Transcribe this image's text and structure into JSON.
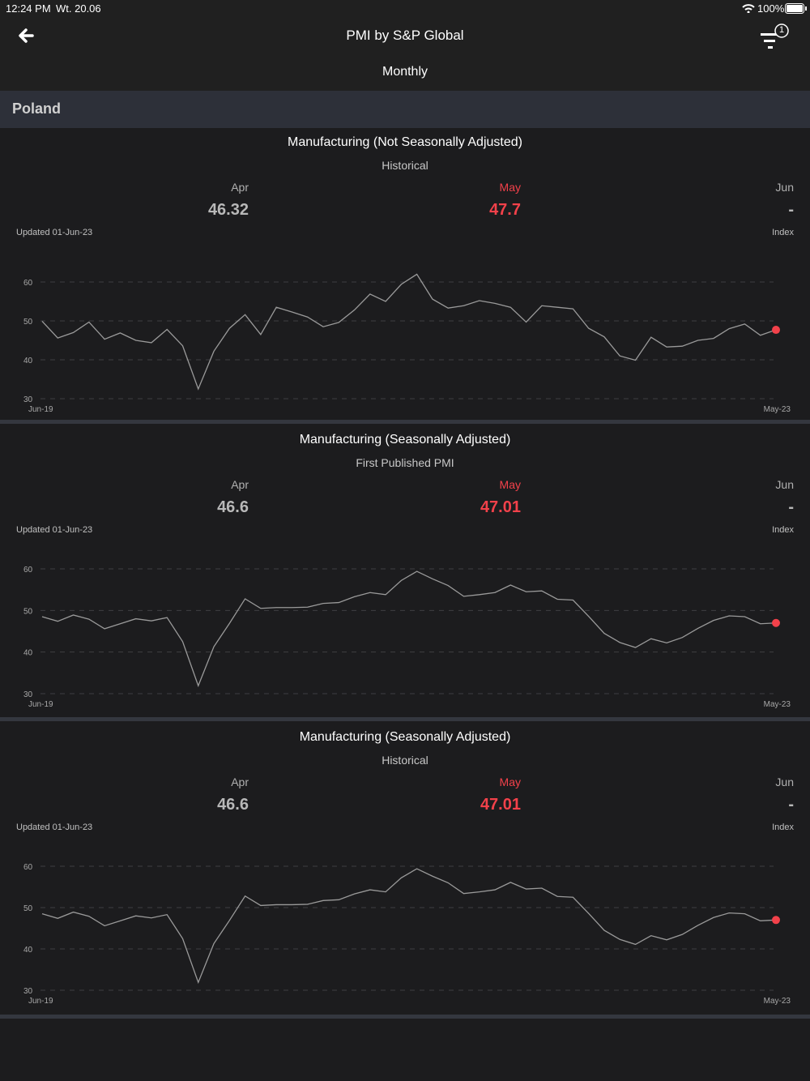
{
  "status_bar": {
    "time": "12:24 PM",
    "date": "Wt. 20.06",
    "battery": "100%"
  },
  "header": {
    "title": "PMI by S&P Global",
    "frequency": "Monthly",
    "filter_badge": "1"
  },
  "region": "Poland",
  "colors": {
    "accent": "#f2414a",
    "line": "#9a9a9a",
    "background": "#1c1c1e",
    "region_band": "#2d3039"
  },
  "cards": [
    {
      "title": "Manufacturing (Not Seasonally Adjusted)",
      "subtitle": "Historical",
      "months": [
        {
          "label": "Apr",
          "value": "46.32"
        },
        {
          "label": "May",
          "value": "47.7"
        },
        {
          "label": "Jun",
          "value": "-"
        }
      ],
      "updated": "Updated 01-Jun-23",
      "unit": "Index"
    },
    {
      "title": "Manufacturing (Seasonally Adjusted)",
      "subtitle": "First Published PMI",
      "months": [
        {
          "label": "Apr",
          "value": "46.6"
        },
        {
          "label": "May",
          "value": "47.01"
        },
        {
          "label": "Jun",
          "value": "-"
        }
      ],
      "updated": "Updated 01-Jun-23",
      "unit": "Index"
    },
    {
      "title": "Manufacturing (Seasonally Adjusted)",
      "subtitle": "Historical",
      "months": [
        {
          "label": "Apr",
          "value": "46.6"
        },
        {
          "label": "May",
          "value": "47.01"
        },
        {
          "label": "Jun",
          "value": "-"
        }
      ],
      "updated": "Updated 01-Jun-23",
      "unit": "Index"
    }
  ],
  "chart_data": [
    {
      "type": "line",
      "title": "Manufacturing (Not Seasonally Adjusted)",
      "x_start": "Jun-19",
      "x_end": "May-23",
      "xtick_labels": [
        "Jun-19",
        "May-23"
      ],
      "yticks": [
        30,
        40,
        50,
        60
      ],
      "ylim": [
        30,
        60
      ],
      "grid": true,
      "values": [
        49.9,
        45.6,
        47.0,
        49.7,
        45.3,
        46.9,
        45.0,
        44.4,
        47.8,
        43.6,
        32.5,
        42.2,
        48.1,
        51.6,
        46.5,
        53.5,
        52.3,
        51.0,
        48.5,
        49.6,
        52.8,
        56.9,
        55.0,
        59.4,
        62.0,
        55.6,
        53.3,
        53.9,
        55.2,
        54.5,
        53.5,
        49.7,
        53.9,
        53.5,
        53.1,
        48.1,
        45.9,
        41.0,
        39.9,
        45.8,
        43.3,
        43.5,
        45.0,
        45.5,
        48.0,
        49.2,
        46.3,
        47.7
      ]
    },
    {
      "type": "line",
      "title": "Manufacturing (Seasonally Adjusted) - First Published PMI",
      "x_start": "Jun-19",
      "x_end": "May-23",
      "xtick_labels": [
        "Jun-19",
        "May-23"
      ],
      "yticks": [
        30,
        40,
        50,
        60
      ],
      "ylim": [
        30,
        60
      ],
      "grid": true,
      "values": [
        48.5,
        47.4,
        48.9,
        47.9,
        45.6,
        46.8,
        48.0,
        47.5,
        48.3,
        42.5,
        31.9,
        41.3,
        46.9,
        52.8,
        50.5,
        50.7,
        50.7,
        50.8,
        51.7,
        51.9,
        53.3,
        54.3,
        53.8,
        57.2,
        59.4,
        57.6,
        56.0,
        53.4,
        53.8,
        54.3,
        56.1,
        54.5,
        54.7,
        52.7,
        52.5,
        48.6,
        44.5,
        42.3,
        41.1,
        43.2,
        42.2,
        43.5,
        45.7,
        47.6,
        48.7,
        48.5,
        46.8,
        47.0
      ]
    },
    {
      "type": "line",
      "title": "Manufacturing (Seasonally Adjusted) - Historical",
      "x_start": "Jun-19",
      "x_end": "May-23",
      "xtick_labels": [
        "Jun-19",
        "May-23"
      ],
      "yticks": [
        30,
        40,
        50,
        60
      ],
      "ylim": [
        30,
        60
      ],
      "grid": true,
      "values": [
        48.5,
        47.4,
        48.9,
        47.9,
        45.6,
        46.8,
        48.0,
        47.5,
        48.3,
        42.5,
        31.9,
        41.3,
        46.9,
        52.8,
        50.5,
        50.7,
        50.7,
        50.8,
        51.7,
        51.9,
        53.3,
        54.3,
        53.8,
        57.2,
        59.4,
        57.6,
        56.0,
        53.4,
        53.8,
        54.3,
        56.1,
        54.5,
        54.7,
        52.7,
        52.5,
        48.6,
        44.5,
        42.3,
        41.1,
        43.2,
        42.2,
        43.5,
        45.7,
        47.6,
        48.7,
        48.5,
        46.8,
        47.0
      ]
    }
  ]
}
